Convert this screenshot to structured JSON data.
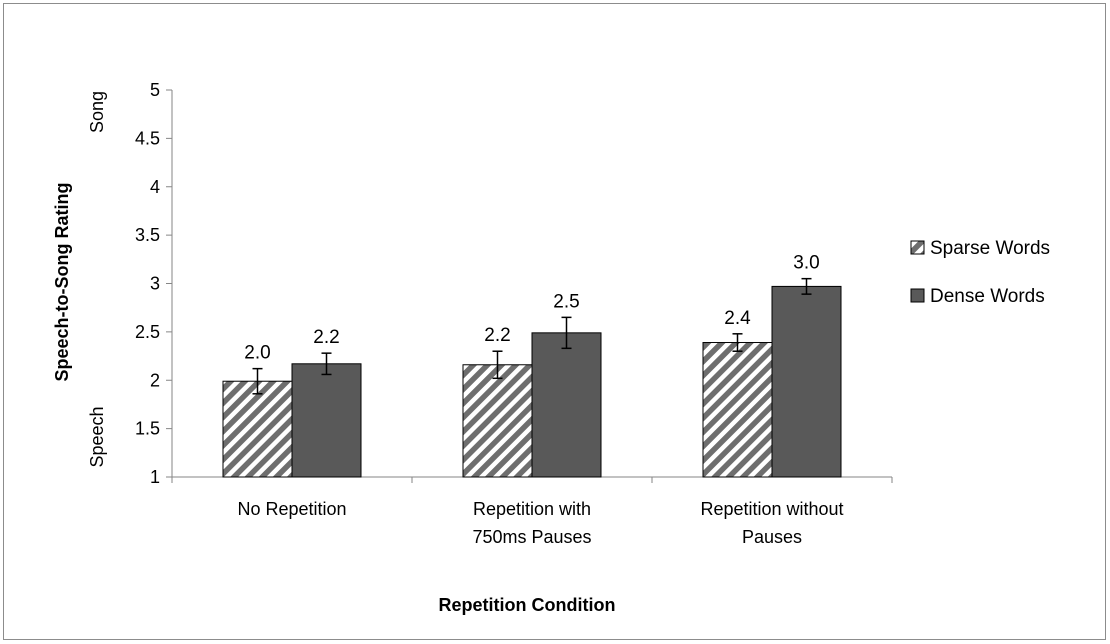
{
  "chart_data": {
    "type": "bar",
    "title": "",
    "xlabel": "Repetition Condition",
    "ylabel": "Speech-to-Song Rating",
    "y_anchor_low": "Speech",
    "y_anchor_high": "Song",
    "ylim": [
      1,
      5
    ],
    "yticks": [
      "1",
      "1.5",
      "2",
      "2.5",
      "3",
      "3.5",
      "4",
      "4.5",
      "5"
    ],
    "categories": [
      [
        "No Repetition"
      ],
      [
        "Repetition with",
        "750ms Pauses"
      ],
      [
        "Repetition without",
        "Pauses"
      ]
    ],
    "series": [
      {
        "name": "Sparse Words",
        "values": [
          1.99,
          2.16,
          2.39
        ],
        "labels": [
          "2.0",
          "2.2",
          "2.4"
        ],
        "error": [
          0.13,
          0.14,
          0.09
        ],
        "fill": "hatched",
        "color": "#5a5a5a"
      },
      {
        "name": "Dense Words",
        "values": [
          2.17,
          2.49,
          2.97
        ],
        "labels": [
          "2.2",
          "2.5",
          "3.0"
        ],
        "error": [
          0.11,
          0.16,
          0.08
        ],
        "fill": "solid",
        "color": "#595959"
      }
    ],
    "grid": false,
    "legend": "right"
  }
}
